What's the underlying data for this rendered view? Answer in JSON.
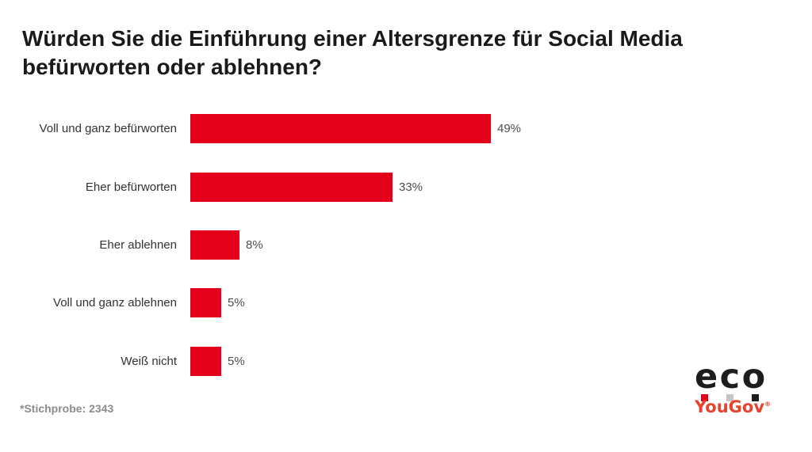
{
  "title_lines": [
    "Würden Sie die Einführung einer Altersgrenze für Social Media",
    "befürworten oder ablehnen?"
  ],
  "footnote": "*Stichprobe: 2343",
  "logo": {
    "eco_text": "eco",
    "yougov_text": "YouGov",
    "registered_mark": "®"
  },
  "colors": {
    "bar_red": "#e2001a",
    "eco_black": "#1d1d1b",
    "logo_square_red": "#e2001a",
    "logo_square_gray": "#c6c6c6",
    "logo_square_black": "#1d1d1b",
    "yougov_red": "#e8432e",
    "title_text": "#1a1a1a",
    "label_text": "#333333",
    "value_text": "#4d4d4d",
    "footnote_text": "#8c8c8c"
  },
  "chart_data": {
    "type": "bar",
    "orientation": "horizontal",
    "title": "Würden Sie die Einführung einer Altersgrenze für Social Media befürworten oder ablehnen?",
    "categories": [
      "Voll und ganz befürworten",
      "Eher befürworten",
      "Eher ablehnen",
      "Voll und ganz ablehnen",
      "Weiß nicht"
    ],
    "values": [
      49,
      33,
      8,
      5,
      5
    ],
    "value_labels": [
      "49%",
      "33%",
      "8%",
      "5%",
      "5%"
    ],
    "unit": "%",
    "xlabel": "",
    "ylabel": "",
    "xlim": [
      0,
      100
    ],
    "grid": false,
    "legend": false,
    "bar_color": "#e2001a",
    "source_note": "*Stichprobe: 2343"
  }
}
